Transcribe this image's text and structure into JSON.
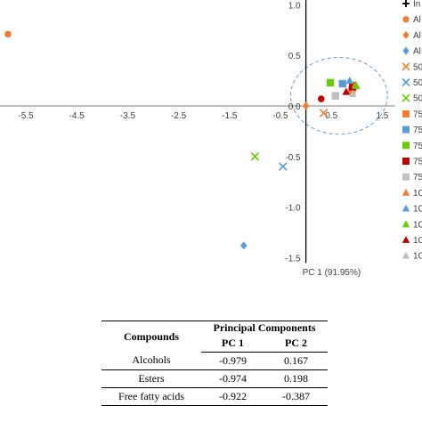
{
  "chart_data": {
    "type": "scatter",
    "xlabel": "PC 1 (91.95%)",
    "ylabel": "",
    "title": "",
    "xlim": [
      -6.2,
      1.75
    ],
    "ylim": [
      -1.5,
      1.0
    ],
    "x_ticks": [
      "-5.5",
      "-4.5",
      "-3.5",
      "-2.5",
      "-1.5",
      "-0.5",
      "0.5",
      "1.5"
    ],
    "x_tick_values": [
      -5.5,
      -4.5,
      -3.5,
      -2.5,
      -1.5,
      -0.5,
      0.5,
      1.5
    ],
    "y_ticks": [
      "1.0",
      "0.5",
      "0.0",
      "-0.5",
      "-1.0",
      "-1.5"
    ],
    "y_tick_values": [
      1.0,
      0.5,
      0.0,
      -0.5,
      -1.0,
      -1.5
    ],
    "grid": false,
    "legend_position": "right",
    "series": [
      {
        "name": "In",
        "marker": "plus",
        "color": "#000000",
        "x": 0.95,
        "y": 0.2
      },
      {
        "name": "Al",
        "marker": "circle",
        "color": "#ED7D31",
        "x": -5.85,
        "y": 0.71
      },
      {
        "name": "Al",
        "marker": "diamond",
        "color": "#ED7D31",
        "x": 0.0,
        "y": 0.0
      },
      {
        "name": "Al",
        "marker": "diamond",
        "color": "#5B9BD5",
        "x": -1.22,
        "y": -1.38
      },
      {
        "name": "50",
        "marker": "x",
        "color": "#ED7D31",
        "x": 0.35,
        "y": -0.07
      },
      {
        "name": "50",
        "marker": "x",
        "color": "#5B9BD5",
        "x": -0.45,
        "y": -0.6
      },
      {
        "name": "50",
        "marker": "x",
        "color": "#66CC00",
        "x": -1.0,
        "y": -0.5
      },
      {
        "name": "75",
        "marker": "square",
        "color": "#ED7D31",
        "x": 0.9,
        "y": 0.15
      },
      {
        "name": "75",
        "marker": "square",
        "color": "#5B9BD5",
        "x": 0.72,
        "y": 0.22
      },
      {
        "name": "75",
        "marker": "square",
        "color": "#66CC00",
        "x": 0.48,
        "y": 0.23
      },
      {
        "name": "75",
        "marker": "square",
        "color": "#C00000",
        "x": 0.92,
        "y": 0.19
      },
      {
        "name": "75",
        "marker": "square",
        "color": "#BFBFBF",
        "x": 0.58,
        "y": 0.1
      },
      {
        "name": "1C",
        "marker": "triangle",
        "color": "#ED7D31",
        "x": 0.97,
        "y": 0.21
      },
      {
        "name": "1C",
        "marker": "triangle",
        "color": "#5B9BD5",
        "x": 0.86,
        "y": 0.25
      },
      {
        "name": "1C",
        "marker": "triangle",
        "color": "#66CC00",
        "x": 0.99,
        "y": 0.2
      },
      {
        "name": "1C",
        "marker": "triangle",
        "color": "#C00000",
        "x": 0.79,
        "y": 0.14
      },
      {
        "name": "1C",
        "marker": "triangle",
        "color": "#BFBFBF",
        "x": 0.92,
        "y": 0.12
      }
    ],
    "extra_points": [
      {
        "marker": "circle",
        "color": "#C00000",
        "x": 0.3,
        "y": 0.07
      }
    ],
    "annotation": {
      "shape": "dashed-ellipse",
      "color": "#5B9BD5",
      "center": [
        0.65,
        0.1
      ],
      "x_radius": 0.95,
      "y_radius": 0.38
    }
  },
  "table": {
    "header_compounds": "Compounds",
    "header_group": "Principal Components",
    "header_pc1": "PC 1",
    "header_pc2": "PC 2",
    "rows": [
      {
        "compound": "Alcohols",
        "pc1": "-0.979",
        "pc2": "0.167"
      },
      {
        "compound": "Esters",
        "pc1": "-0.974",
        "pc2": "0.198"
      },
      {
        "compound": "Free fatty acids",
        "pc1": "-0.922",
        "pc2": "-0.387"
      }
    ]
  }
}
